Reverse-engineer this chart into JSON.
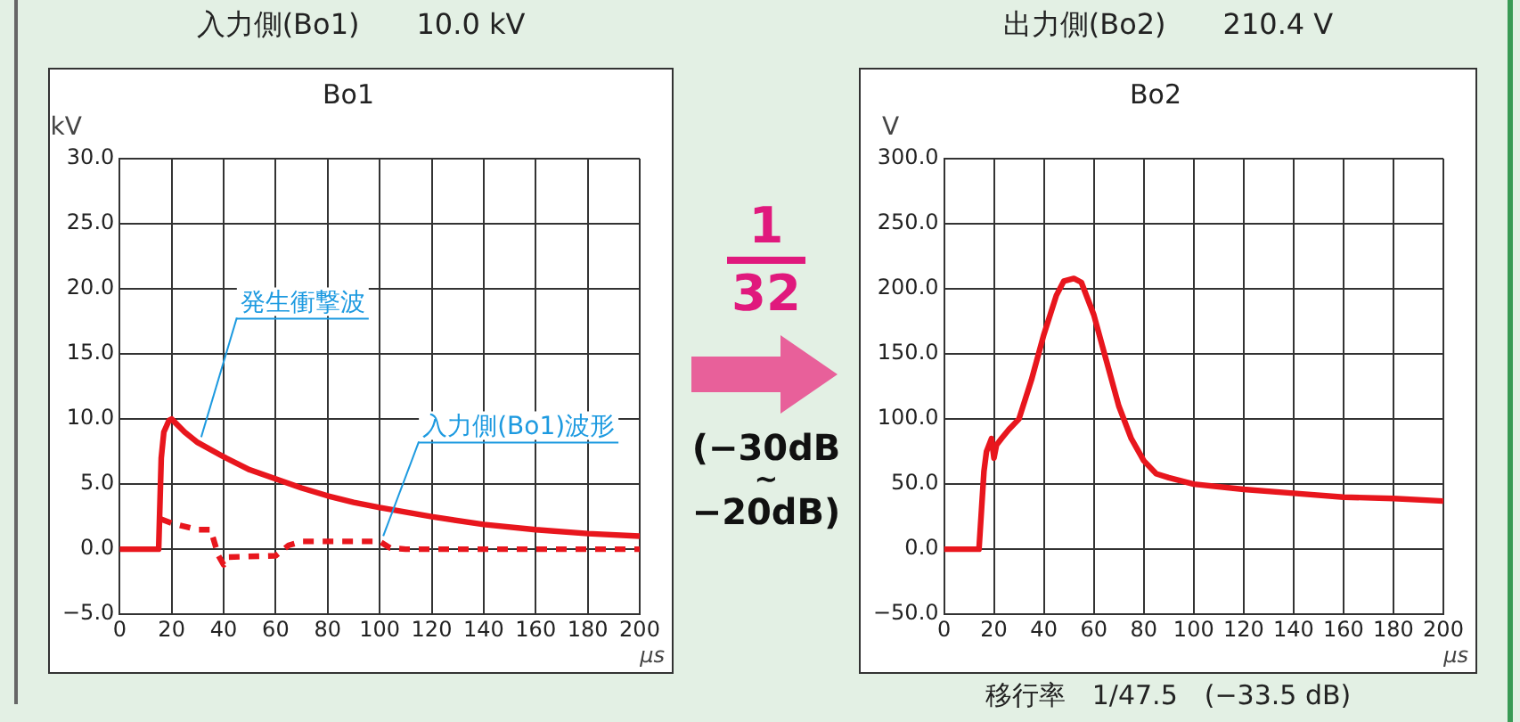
{
  "chart_data": [
    {
      "type": "line",
      "title": "入力側(Bo1)　　10.0 kV",
      "subtitle": "Bo1",
      "xlabel": "μs",
      "ylabel": "kV",
      "xlim": [
        0,
        200
      ],
      "xticks": [
        0,
        20,
        40,
        60,
        80,
        100,
        120,
        140,
        160,
        180,
        200
      ],
      "ylim": [
        -5,
        30
      ],
      "yticks": [
        {
          "value": -5,
          "label": "−5.0"
        },
        {
          "value": 0,
          "label": "0.0"
        },
        {
          "value": 5,
          "label": "5.0"
        },
        {
          "value": 10,
          "label": "10.0"
        },
        {
          "value": 15,
          "label": "15.0"
        },
        {
          "value": 20,
          "label": "20.0"
        },
        {
          "value": 25,
          "label": "25.0"
        },
        {
          "value": 30,
          "label": "30.0"
        }
      ],
      "grid": true,
      "legend": false,
      "marker": "none",
      "annotations": [
        "1",
        "32",
        "(−30dB ~ −20dB)"
      ],
      "series": [
        {
          "name": "発生衝撃波",
          "color": "#e8161d",
          "line_style": "solid",
          "x": [
            0,
            15,
            16,
            17,
            19,
            20,
            25,
            30,
            40,
            50,
            60,
            70,
            80,
            90,
            100,
            120,
            140,
            160,
            180,
            200
          ],
          "values": [
            0,
            0,
            7,
            9,
            9.9,
            10,
            9,
            8.2,
            7.1,
            6.1,
            5.4,
            4.7,
            4.1,
            3.6,
            3.2,
            2.5,
            1.9,
            1.5,
            1.2,
            1
          ]
        },
        {
          "name": "入力側(Bo1)波形",
          "color": "#e8161d",
          "line_style": "dashed",
          "x": [
            16,
            20,
            30,
            35,
            38,
            40,
            42,
            60,
            65,
            70,
            100,
            104,
            110,
            200
          ],
          "values": [
            2.3,
            2,
            1.5,
            1.5,
            -0.5,
            -1.2,
            -0.6,
            -0.5,
            0.3,
            0.6,
            0.6,
            0.1,
            0,
            0
          ]
        }
      ]
    },
    {
      "type": "line",
      "title": "出力側(Bo2)　　210.4 V",
      "subtitle": "Bo2",
      "xlabel": "μs",
      "ylabel": "V",
      "xlim": [
        0,
        200
      ],
      "xticks": [
        0,
        20,
        40,
        60,
        80,
        100,
        120,
        140,
        160,
        180,
        200
      ],
      "ylim": [
        -50,
        300
      ],
      "yticks": [
        {
          "value": -50,
          "label": "−50.0"
        },
        {
          "value": 0,
          "label": "0.0"
        },
        {
          "value": 50,
          "label": "50.0"
        },
        {
          "value": 100,
          "label": "100.0"
        },
        {
          "value": 150,
          "label": "150.0"
        },
        {
          "value": 200,
          "label": "200.0"
        },
        {
          "value": 250,
          "label": "250.0"
        },
        {
          "value": 300,
          "label": "300.0"
        }
      ],
      "grid": true,
      "legend": false,
      "marker": "none",
      "annotations": [
        "移行率　1/47.5　(−33.5 dB)"
      ],
      "series": [
        {
          "color": "#e8161d",
          "line_style": "solid",
          "x": [
            0,
            14,
            15,
            16,
            17,
            18,
            19,
            20,
            21,
            23,
            26,
            30,
            35,
            40,
            45,
            48,
            52,
            55,
            60,
            65,
            70,
            75,
            80,
            85,
            90,
            100,
            120,
            140,
            160,
            180,
            200
          ],
          "values": [
            0,
            0,
            30,
            60,
            75,
            80,
            85,
            70,
            80,
            85,
            92,
            100,
            130,
            165,
            195,
            206,
            208,
            205,
            180,
            145,
            110,
            85,
            68,
            58,
            55,
            50,
            46,
            43,
            40,
            39,
            37
          ]
        }
      ]
    }
  ]
}
